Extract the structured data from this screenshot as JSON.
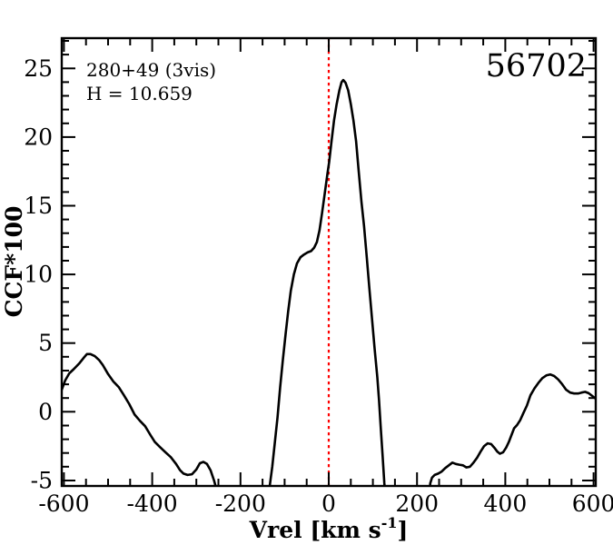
{
  "chart_data": {
    "type": "line",
    "title": "",
    "annotation_line1": "280+49 (3vis)",
    "annotation_line2": "H = 10.659",
    "field_id": "56702",
    "xlabel": "Vrel [km s^-1]",
    "xlabel_main": "Vrel [km s",
    "xlabel_sup": "-1",
    "xlabel_close": "]",
    "ylabel": "CCF*100",
    "xlim": [
      -605,
      605
    ],
    "ylim": [
      -5.4,
      27.2
    ],
    "grid": false,
    "legend": null,
    "colors": {
      "curve": "#000000",
      "ref_line": "#ff0000",
      "frame": "#000000",
      "background": "#ffffff"
    },
    "ref_line": {
      "x": 0,
      "style": "dotted",
      "color": "#ff0000"
    },
    "xticks": {
      "values": [
        -600,
        -400,
        -200,
        0,
        200,
        400,
        600
      ],
      "labels": [
        "-600",
        "-400",
        "-200",
        "0",
        "200",
        "400",
        "600"
      ],
      "minor_step": 50
    },
    "yticks": {
      "values": [
        -5,
        0,
        5,
        10,
        15,
        20,
        25
      ],
      "labels": [
        "-5",
        "0",
        "5",
        "10",
        "15",
        "20",
        "25"
      ],
      "minor_step": 1
    },
    "series": [
      {
        "name": "CCF",
        "segments": [
          [
            [
              -605,
              1.6
            ],
            [
              -597,
              2.3
            ],
            [
              -588,
              2.8
            ],
            [
              -578,
              3.1
            ],
            [
              -566,
              3.5
            ],
            [
              -556,
              3.9
            ],
            [
              -548,
              4.2
            ],
            [
              -540,
              4.2
            ],
            [
              -530,
              4.05
            ],
            [
              -520,
              3.75
            ],
            [
              -512,
              3.4
            ],
            [
              -500,
              2.75
            ],
            [
              -488,
              2.2
            ],
            [
              -476,
              1.8
            ],
            [
              -464,
              1.2
            ],
            [
              -452,
              0.55
            ],
            [
              -440,
              -0.2
            ],
            [
              -428,
              -0.65
            ],
            [
              -416,
              -1.05
            ],
            [
              -404,
              -1.7
            ],
            [
              -394,
              -2.2
            ],
            [
              -383,
              -2.55
            ],
            [
              -370,
              -2.95
            ],
            [
              -358,
              -3.3
            ],
            [
              -346,
              -3.8
            ],
            [
              -337,
              -4.25
            ],
            [
              -329,
              -4.5
            ],
            [
              -320,
              -4.6
            ],
            [
              -310,
              -4.55
            ],
            [
              -300,
              -4.2
            ],
            [
              -292,
              -3.75
            ],
            [
              -284,
              -3.65
            ],
            [
              -276,
              -3.8
            ],
            [
              -268,
              -4.25
            ],
            [
              -260,
              -5.0
            ],
            [
              -254,
              -5.7
            ],
            [
              -251,
              -6.2
            ]
          ],
          [
            [
              -137,
              -6.2
            ],
            [
              -133,
              -5.2
            ],
            [
              -128,
              -4.0
            ],
            [
              -122,
              -2.2
            ],
            [
              -116,
              -0.4
            ],
            [
              -110,
              1.8
            ],
            [
              -104,
              3.8
            ],
            [
              -98,
              5.6
            ],
            [
              -92,
              7.3
            ],
            [
              -86,
              8.8
            ],
            [
              -79,
              10.0
            ],
            [
              -72,
              10.8
            ],
            [
              -64,
              11.25
            ],
            [
              -56,
              11.45
            ],
            [
              -48,
              11.6
            ],
            [
              -40,
              11.7
            ],
            [
              -33,
              11.95
            ],
            [
              -27,
              12.35
            ],
            [
              -21,
              13.2
            ],
            [
              -15,
              14.5
            ],
            [
              -9,
              15.9
            ],
            [
              -3,
              17.3
            ],
            [
              1,
              18.2
            ],
            [
              6,
              19.6
            ],
            [
              12,
              21.2
            ],
            [
              18,
              22.4
            ],
            [
              24,
              23.4
            ],
            [
              29,
              24.0
            ],
            [
              33,
              24.15
            ],
            [
              38,
              23.95
            ],
            [
              44,
              23.4
            ],
            [
              50,
              22.4
            ],
            [
              56,
              21.2
            ],
            [
              62,
              19.7
            ],
            [
              68,
              17.5
            ],
            [
              74,
              15.3
            ],
            [
              80,
              13.5
            ],
            [
              86,
              11.3
            ],
            [
              92,
              9.0
            ],
            [
              98,
              6.8
            ],
            [
              104,
              4.6
            ],
            [
              110,
              2.5
            ],
            [
              114,
              0.8
            ],
            [
              118,
              -1.2
            ],
            [
              122,
              -3.2
            ],
            [
              126,
              -5.2
            ],
            [
              129,
              -6.2
            ]
          ],
          [
            [
              227,
              -6.2
            ],
            [
              230,
              -5.2
            ],
            [
              234,
              -4.8
            ],
            [
              240,
              -4.6
            ],
            [
              248,
              -4.5
            ],
            [
              256,
              -4.35
            ],
            [
              264,
              -4.1
            ],
            [
              272,
              -3.9
            ],
            [
              280,
              -3.7
            ],
            [
              288,
              -3.8
            ],
            [
              296,
              -3.85
            ],
            [
              304,
              -3.9
            ],
            [
              312,
              -4.05
            ],
            [
              320,
              -4.0
            ],
            [
              328,
              -3.7
            ],
            [
              336,
              -3.35
            ],
            [
              344,
              -2.9
            ],
            [
              352,
              -2.5
            ],
            [
              360,
              -2.3
            ],
            [
              368,
              -2.35
            ],
            [
              375,
              -2.6
            ],
            [
              382,
              -2.9
            ],
            [
              388,
              -3.05
            ],
            [
              395,
              -2.95
            ],
            [
              402,
              -2.6
            ],
            [
              408,
              -2.2
            ],
            [
              414,
              -1.7
            ],
            [
              420,
              -1.2
            ],
            [
              427,
              -0.95
            ],
            [
              434,
              -0.6
            ],
            [
              441,
              -0.1
            ],
            [
              449,
              0.45
            ],
            [
              457,
              1.2
            ],
            [
              466,
              1.7
            ],
            [
              475,
              2.1
            ],
            [
              484,
              2.45
            ],
            [
              493,
              2.65
            ],
            [
              502,
              2.72
            ],
            [
              511,
              2.6
            ],
            [
              520,
              2.35
            ],
            [
              529,
              2.0
            ],
            [
              538,
              1.6
            ],
            [
              547,
              1.4
            ],
            [
              556,
              1.33
            ],
            [
              565,
              1.33
            ],
            [
              573,
              1.4
            ],
            [
              581,
              1.45
            ],
            [
              589,
              1.35
            ],
            [
              597,
              1.15
            ],
            [
              605,
              0.95
            ]
          ]
        ]
      }
    ]
  }
}
